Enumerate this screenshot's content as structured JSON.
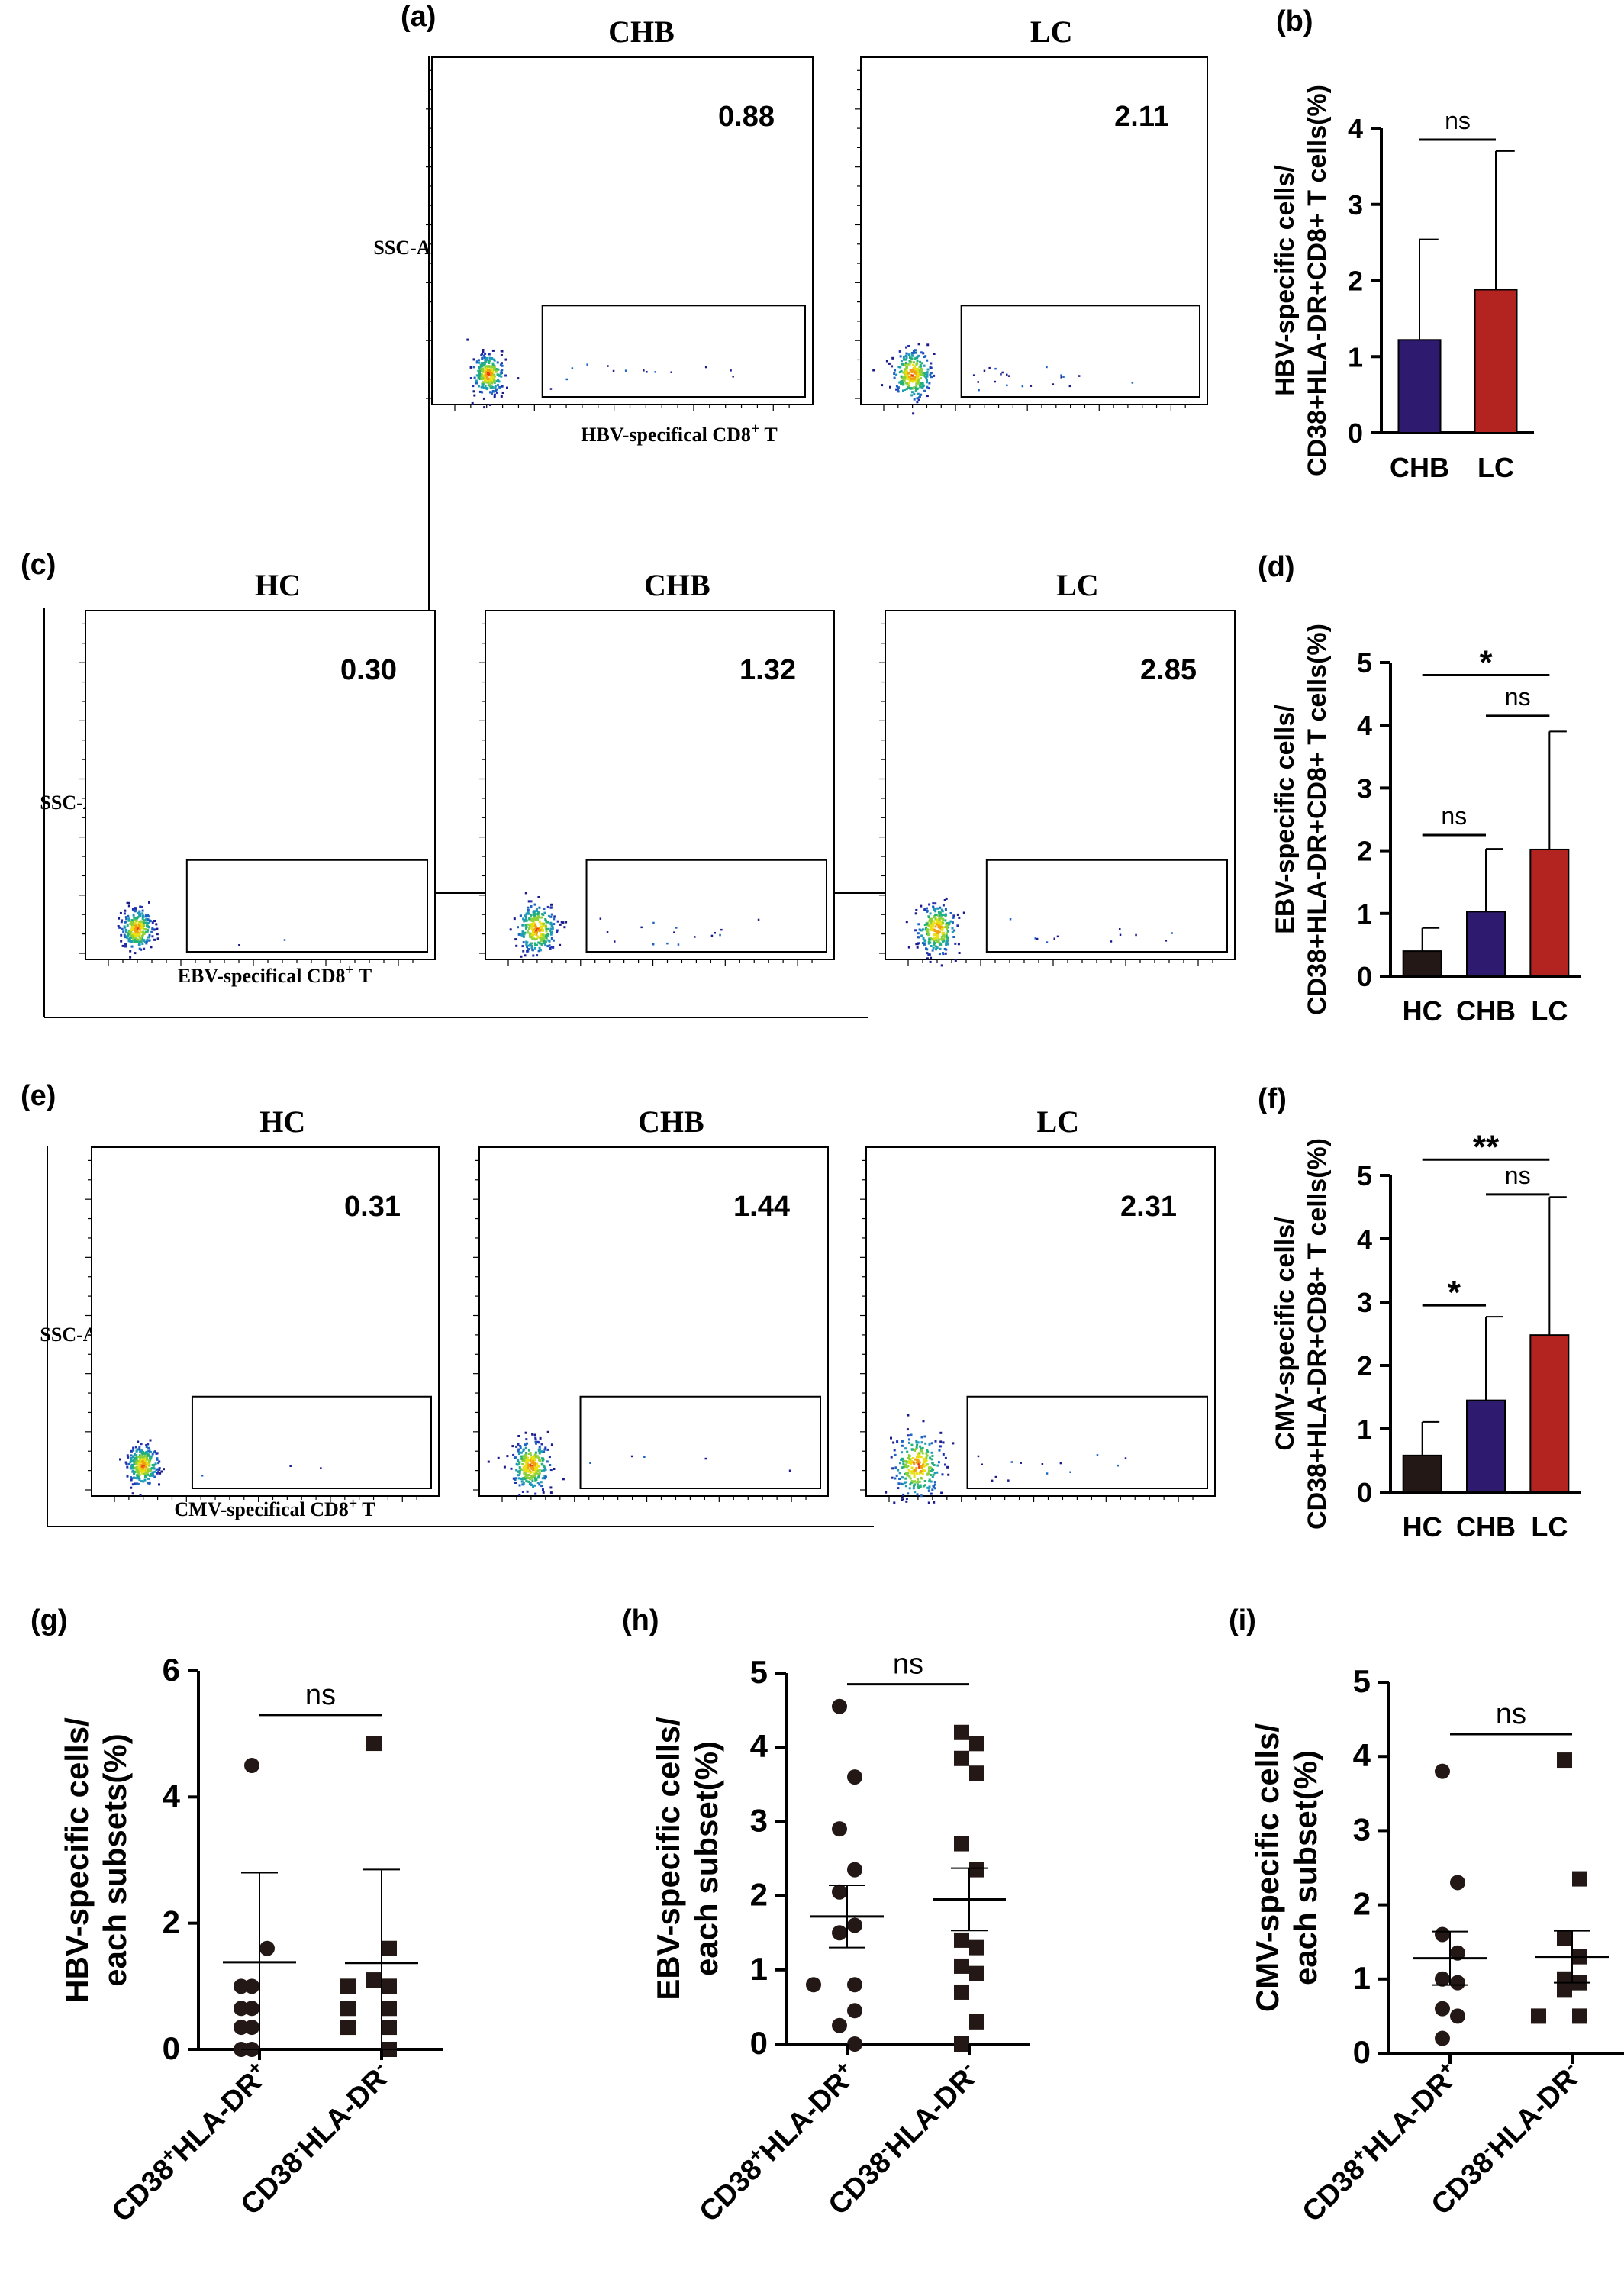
{
  "figure": {
    "panel_labels": [
      "(a)",
      "(b)",
      "(c)",
      "(d)",
      "(e)",
      "(f)",
      "(g)",
      "(h)",
      "(i)"
    ]
  },
  "flow_panels": [
    {
      "id": "a",
      "y_label": "SSC-A",
      "x_label": "HBV-specifical CD8",
      "x_label_sup": "+",
      "x_label_tail": " T",
      "plots": [
        {
          "group": "CHB",
          "value": "0.88",
          "gated_events": 14
        },
        {
          "group": "LC",
          "value": "2.11",
          "gated_events": 22
        }
      ]
    },
    {
      "id": "c",
      "y_label": "SSC-A",
      "x_label": "EBV-specifical CD8",
      "x_label_sup": "+",
      "x_label_tail": " T",
      "plots": [
        {
          "group": "HC",
          "value": "0.30",
          "gated_events": 2
        },
        {
          "group": "CHB",
          "value": "1.32",
          "gated_events": 16
        },
        {
          "group": "LC",
          "value": "2.85",
          "gated_events": 12
        }
      ]
    },
    {
      "id": "e",
      "y_label": "SSC-A",
      "x_label": "CMV-specifical CD8",
      "x_label_sup": "+",
      "x_label_tail": " T",
      "plots": [
        {
          "group": "HC",
          "value": "0.31",
          "gated_events": 3
        },
        {
          "group": "CHB",
          "value": "1.44",
          "gated_events": 5
        },
        {
          "group": "LC",
          "value": "2.31",
          "gated_events": 14
        }
      ]
    }
  ],
  "chart_data": [
    {
      "id": "b",
      "type": "bar",
      "ylabel_line1": "HBV-specific cells/",
      "ylabel_line2": "CD38+HLA-DR+CD8+ T cells(%)",
      "categories": [
        "CHB",
        "LC"
      ],
      "values": [
        1.22,
        1.88
      ],
      "errors": [
        1.32,
        1.82
      ],
      "colors": [
        "#2e1a6e",
        "#b3231f"
      ],
      "ylim": [
        0,
        4
      ],
      "yticks": [
        "0",
        "1",
        "2",
        "3",
        "4"
      ],
      "comparisons": [
        {
          "from": 0,
          "to": 1,
          "label": "ns",
          "y": 3.85
        }
      ]
    },
    {
      "id": "d",
      "type": "bar",
      "ylabel_line1": "EBV-specific cells/",
      "ylabel_line2": "CD38+HLA-DR+CD8+ T cells(%)",
      "categories": [
        "HC",
        "CHB",
        "LC"
      ],
      "values": [
        0.4,
        1.03,
        2.02
      ],
      "errors": [
        0.37,
        1.0,
        1.88
      ],
      "colors": [
        "#231815",
        "#2e1a6e",
        "#b3231f"
      ],
      "ylim": [
        0,
        5
      ],
      "yticks": [
        "0",
        "1",
        "2",
        "3",
        "4",
        "5"
      ],
      "comparisons": [
        {
          "from": 0,
          "to": 2,
          "label": "*",
          "y": 4.8
        },
        {
          "from": 1,
          "to": 2,
          "label": "ns",
          "y": 4.15
        },
        {
          "from": 0,
          "to": 1,
          "label": "ns",
          "y": 2.25
        }
      ]
    },
    {
      "id": "f",
      "type": "bar",
      "ylabel_line1": "CMV-specific cells/",
      "ylabel_line2": "CD38+HLA-DR+CD8+ T cells(%)",
      "categories": [
        "HC",
        "CHB",
        "LC"
      ],
      "values": [
        0.58,
        1.45,
        2.48
      ],
      "errors": [
        0.53,
        1.32,
        2.18
      ],
      "colors": [
        "#231815",
        "#2e1a6e",
        "#b3231f"
      ],
      "ylim": [
        0,
        5
      ],
      "yticks": [
        "0",
        "1",
        "2",
        "3",
        "4",
        "5"
      ],
      "comparisons": [
        {
          "from": 0,
          "to": 2,
          "label": "**",
          "y": 5.25
        },
        {
          "from": 1,
          "to": 2,
          "label": "ns",
          "y": 4.7
        },
        {
          "from": 0,
          "to": 1,
          "label": "*",
          "y": 2.95
        }
      ]
    },
    {
      "id": "g",
      "type": "scatter",
      "ylabel_line1": "HBV-specific cells/",
      "ylabel_line2": "each subsets(%)",
      "categories": [
        "CD38+HLA-DR+",
        "CD38-HLA-DR-"
      ],
      "category_parts": [
        [
          "CD38",
          "+",
          "HLA-DR",
          "+"
        ],
        [
          "CD38",
          "-",
          "HLA-DR",
          "-"
        ]
      ],
      "series": [
        {
          "marker": "circle",
          "values": [
            4.5,
            1.6,
            1.0,
            1.0,
            0.65,
            0.65,
            0.35,
            0.35,
            0.0,
            0.0
          ],
          "mean": 1.38,
          "error": 1.42
        },
        {
          "marker": "square",
          "values": [
            4.85,
            1.6,
            1.1,
            1.0,
            1.0,
            0.65,
            0.65,
            0.35,
            0.35,
            0.0
          ],
          "mean": 1.37,
          "error": 1.48
        }
      ],
      "ylim": [
        0,
        6
      ],
      "yticks": [
        "0",
        "2",
        "4",
        "6"
      ],
      "comparisons": [
        {
          "from": 0,
          "to": 1,
          "label": "ns",
          "y": 5.3
        }
      ]
    },
    {
      "id": "h",
      "type": "scatter",
      "ylabel_line1": "EBV-specific cells/",
      "ylabel_line2": "each subset(%)",
      "categories": [
        "CD38+HLA-DR+",
        "CD38-HLA-DR-"
      ],
      "category_parts": [
        [
          "CD38",
          "+",
          "HLA-DR",
          "+"
        ],
        [
          "CD38",
          "-",
          "HLA-DR",
          "-"
        ]
      ],
      "series": [
        {
          "marker": "circle",
          "values": [
            4.55,
            3.6,
            2.9,
            2.35,
            2.05,
            1.6,
            1.5,
            0.8,
            0.8,
            0.45,
            0.25,
            0.0
          ],
          "mean": 1.72,
          "error": 0.42
        },
        {
          "marker": "square",
          "values": [
            4.2,
            4.05,
            3.85,
            3.65,
            2.7,
            2.35,
            1.4,
            1.3,
            1.05,
            0.95,
            0.7,
            0.3,
            0.0
          ],
          "mean": 1.95,
          "error": 0.42
        }
      ],
      "ylim": [
        0,
        5
      ],
      "yticks": [
        "0",
        "1",
        "2",
        "3",
        "4",
        "5"
      ],
      "comparisons": [
        {
          "from": 0,
          "to": 1,
          "label": "ns",
          "y": 4.85
        }
      ]
    },
    {
      "id": "i",
      "type": "scatter",
      "ylabel_line1": "CMV-specific cells/",
      "ylabel_line2": "each subset(%)",
      "categories": [
        "CD38+HLA-DR+",
        "CD38-HLA-DR-"
      ],
      "category_parts": [
        [
          "CD38",
          "+",
          "HLA-DR",
          "+"
        ],
        [
          "CD38",
          "-",
          "HLA-DR",
          "-"
        ]
      ],
      "series": [
        {
          "marker": "circle",
          "values": [
            3.8,
            2.3,
            1.6,
            1.35,
            1.0,
            0.95,
            0.6,
            0.5,
            0.2
          ],
          "mean": 1.28,
          "error": 0.36
        },
        {
          "marker": "square",
          "values": [
            3.95,
            2.35,
            1.55,
            1.3,
            1.0,
            0.95,
            0.85,
            0.5,
            0.5
          ],
          "mean": 1.3,
          "error": 0.35
        }
      ],
      "ylim": [
        0,
        5
      ],
      "yticks": [
        "0",
        "1",
        "2",
        "3",
        "4",
        "5"
      ],
      "comparisons": [
        {
          "from": 0,
          "to": 1,
          "label": "ns",
          "y": 4.3
        }
      ]
    }
  ]
}
